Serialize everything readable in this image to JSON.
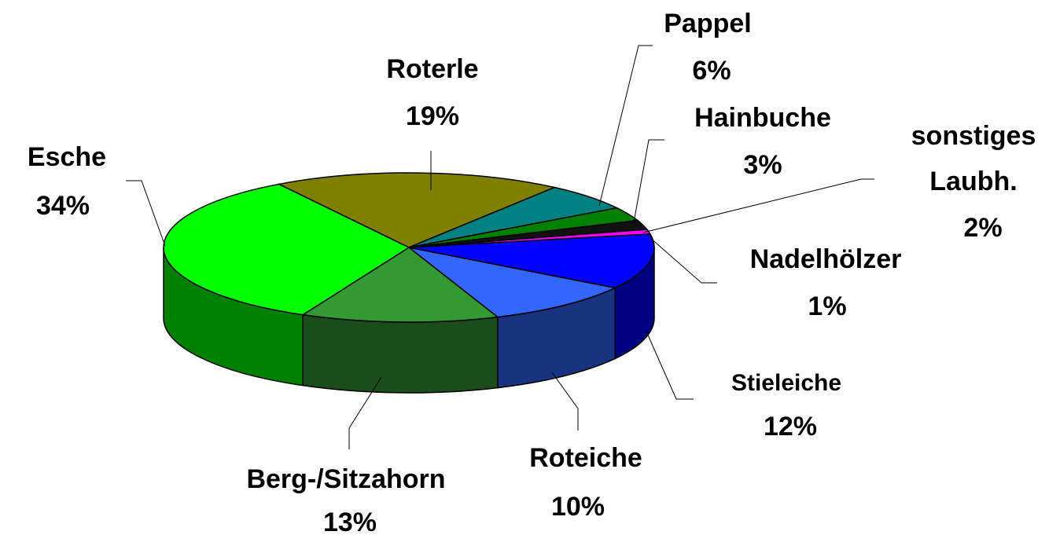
{
  "chart_data": {
    "type": "pie",
    "categories": [
      "Roterle",
      "Pappel",
      "Hainbuche",
      "sonstiges Laubh.",
      "Nadelhölzer",
      "Stieleiche",
      "Roteiche",
      "Berg-/Sitzahorn",
      "Esche"
    ],
    "values": [
      19,
      6,
      3,
      2,
      1,
      12,
      10,
      13,
      34
    ],
    "value_labels": [
      "19%",
      "6%",
      "3%",
      "2%",
      "1%",
      "12%",
      "10%",
      "13%",
      "34%"
    ],
    "colors": [
      "#808000",
      "#008080",
      "#008000",
      "#111111",
      "#ff00ff",
      "#0000ff",
      "#3366ff",
      "#339933",
      "#00ff00"
    ]
  }
}
